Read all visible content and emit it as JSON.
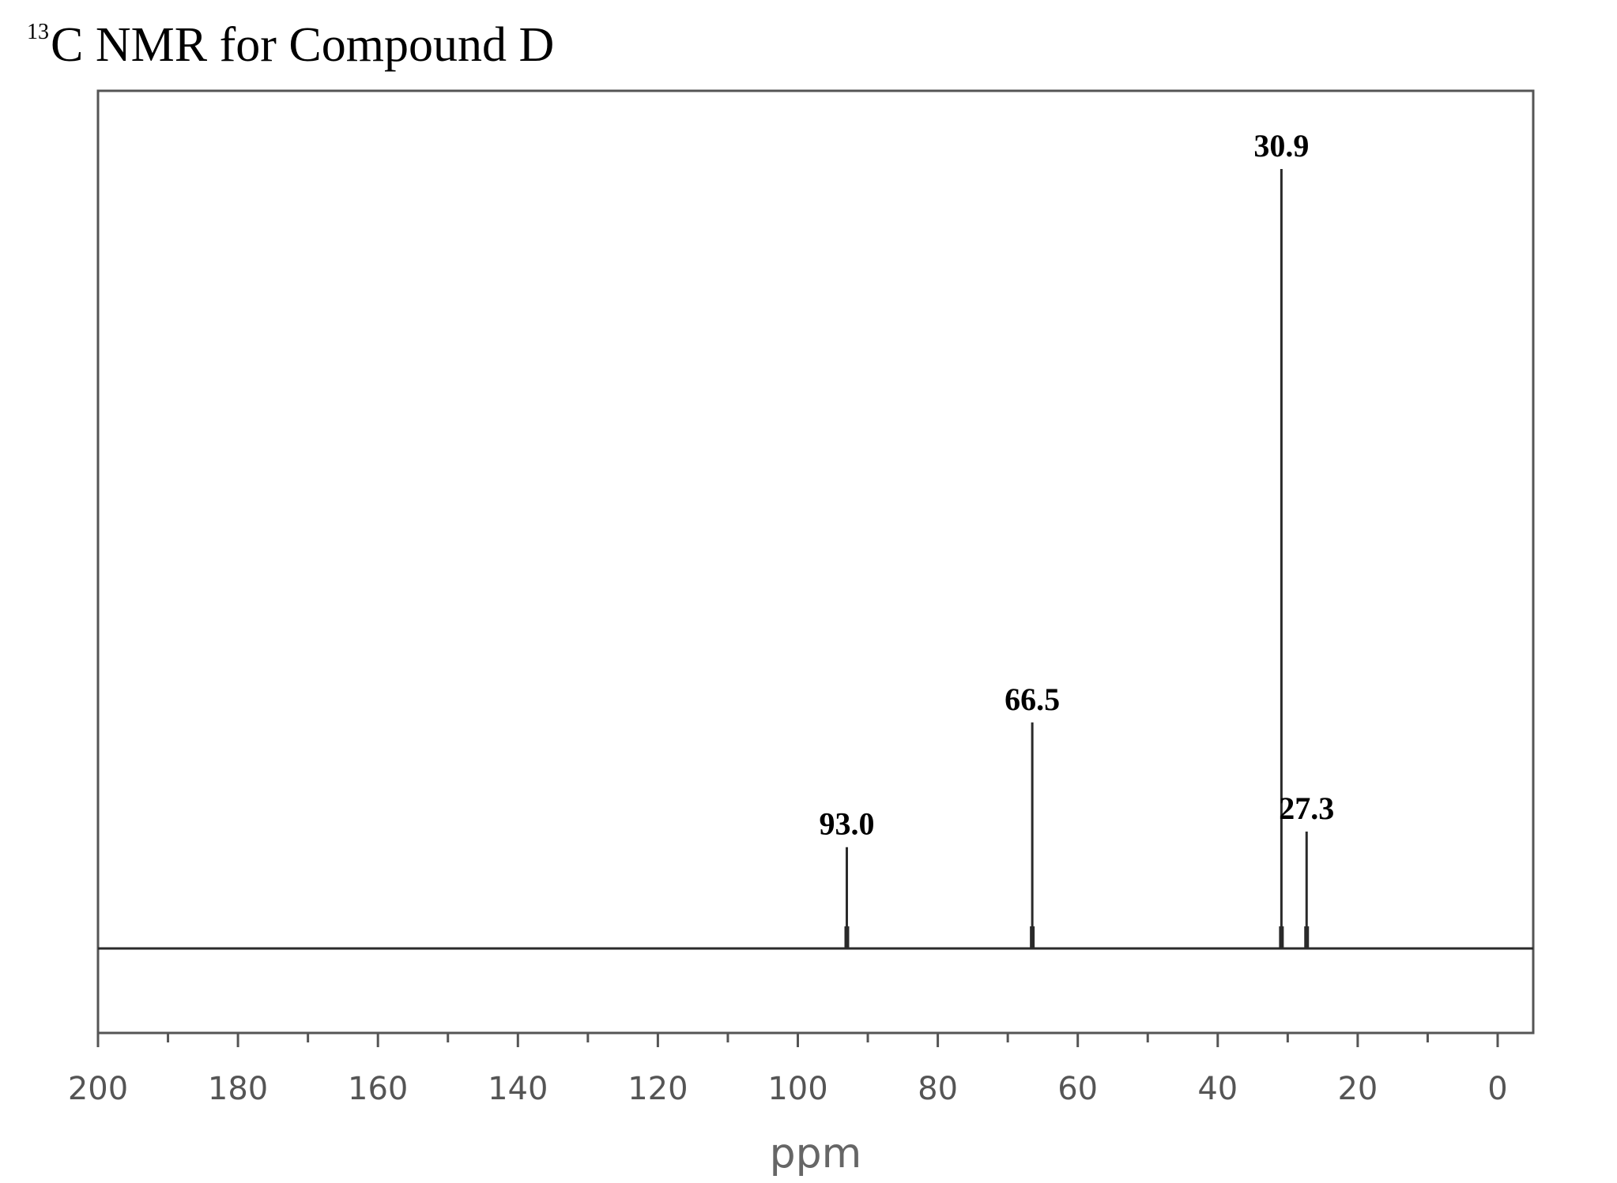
{
  "title": {
    "superscript": "13",
    "text": "C NMR for Compound D"
  },
  "chart_data": {
    "type": "line",
    "title": "13C NMR for Compound D",
    "xlabel": "ppm",
    "ylabel": "",
    "xlim": [
      200,
      0
    ],
    "x_ticks": [
      "200",
      "180",
      "160",
      "140",
      "120",
      "100",
      "80",
      "60",
      "40",
      "20",
      "0"
    ],
    "x_minor_tick_step": 10,
    "grid": false,
    "legend": "none",
    "peaks": [
      {
        "x": 93.0,
        "label": "93.0",
        "intensity": 0.13
      },
      {
        "x": 66.5,
        "label": "66.5",
        "intensity": 0.29
      },
      {
        "x": 30.9,
        "label": "30.9",
        "intensity": 1.0
      },
      {
        "x": 27.3,
        "label": "27.3",
        "intensity": 0.15
      }
    ],
    "colors": {
      "spectrum": "#2a2a2a",
      "frame": "#555555",
      "ticks": "#555555"
    }
  }
}
